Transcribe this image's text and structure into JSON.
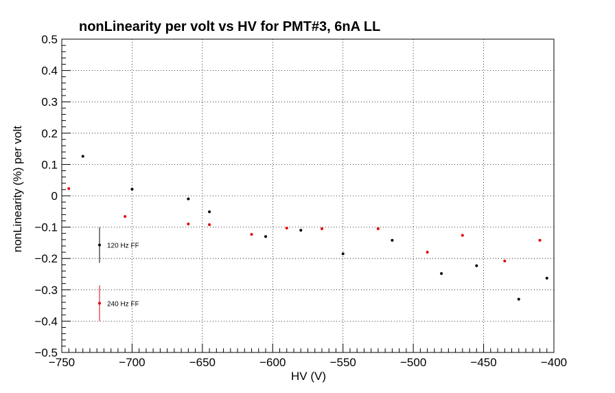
{
  "chart_data": {
    "type": "scatter",
    "title": "nonLinearity per volt vs HV for PMT#3, 6nA LL",
    "xlabel": "HV (V)",
    "ylabel": "nonLinearity (%) per volt",
    "xlim": [
      -750,
      -400
    ],
    "ylim": [
      -0.5,
      0.5
    ],
    "x_ticks": [
      -750,
      -700,
      -650,
      -600,
      -550,
      -500,
      -450,
      -400
    ],
    "x_tick_labels": [
      "−750",
      "−700",
      "−650",
      "−600",
      "−550",
      "−500",
      "−450",
      "−400"
    ],
    "y_ticks": [
      -0.5,
      -0.4,
      -0.3,
      -0.2,
      -0.1,
      0,
      0.1,
      0.2,
      0.3,
      0.4,
      0.5
    ],
    "y_tick_labels": [
      "−0.5",
      "−0.4",
      "−0.3",
      "−0.2",
      "−0.1",
      "0",
      "0.1",
      "0.2",
      "0.3",
      "0.4",
      "0.5"
    ],
    "grid": true,
    "series": [
      {
        "name": "120 Hz FF",
        "color": "#000000",
        "legend_y": -0.157,
        "legend_err": 0.057,
        "points": [
          {
            "x": -735,
            "y": 0.126
          },
          {
            "x": -700,
            "y": 0.021
          },
          {
            "x": -660,
            "y": -0.01
          },
          {
            "x": -645,
            "y": -0.051
          },
          {
            "x": -605,
            "y": -0.13
          },
          {
            "x": -580,
            "y": -0.11
          },
          {
            "x": -550,
            "y": -0.185
          },
          {
            "x": -515,
            "y": -0.142
          },
          {
            "x": -480,
            "y": -0.248
          },
          {
            "x": -455,
            "y": -0.223
          },
          {
            "x": -425,
            "y": -0.33
          },
          {
            "x": -405,
            "y": -0.263
          }
        ]
      },
      {
        "name": "240 Hz FF",
        "color": "#e00000",
        "legend_y": -0.343,
        "legend_err": 0.057,
        "points": [
          {
            "x": -745,
            "y": 0.023
          },
          {
            "x": -705,
            "y": -0.066
          },
          {
            "x": -660,
            "y": -0.09
          },
          {
            "x": -645,
            "y": -0.092
          },
          {
            "x": -615,
            "y": -0.123
          },
          {
            "x": -590,
            "y": -0.103
          },
          {
            "x": -565,
            "y": -0.105
          },
          {
            "x": -525,
            "y": -0.105
          },
          {
            "x": -490,
            "y": -0.18
          },
          {
            "x": -465,
            "y": -0.126
          },
          {
            "x": -435,
            "y": -0.208
          },
          {
            "x": -410,
            "y": -0.142
          }
        ]
      }
    ]
  }
}
